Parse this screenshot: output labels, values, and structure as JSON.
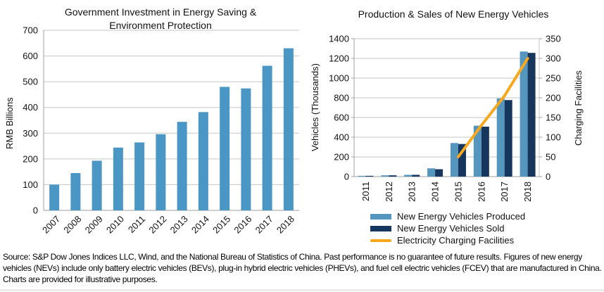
{
  "source": {
    "text": "Source: S&P Dow Jones Indices LLC, Wind, and the National Bureau of Statistics of China.  Past performance is no guarantee of future results.  Figures of new energy vehicles (NEVs) include only battery electric vehicles (BEVs), plug-in hybrid electric vehicles (PHEVs), and fuel cell electric vehicles (FCEV) that are manufactured in China.  Charts are provided for illustrative purposes."
  },
  "colors": {
    "bar_blue": "#4A97C5",
    "produced_blue": "#5596BF",
    "sold_navy": "#16365D",
    "line_orange": "#F7A81D",
    "gridline": "#C6C6C6",
    "axis": "#A0A0A0",
    "text": "#111111"
  },
  "chart_data": [
    {
      "type": "bar",
      "title": "Government Investment in Energy Saving & Environment Protection",
      "ylabel": "RMB Billions",
      "xlabel": "",
      "categories": [
        "2007",
        "2008",
        "2009",
        "2010",
        "2011",
        "2012",
        "2013",
        "2014",
        "2015",
        "2016",
        "2017",
        "2018"
      ],
      "values": [
        100,
        145,
        193,
        244,
        264,
        296,
        344,
        382,
        480,
        474,
        562,
        630
      ],
      "ylim": [
        0,
        700
      ],
      "y_ticks": [
        0,
        100,
        200,
        300,
        400,
        500,
        600,
        700
      ],
      "bar_color": "#4A97C5",
      "grid": true,
      "legend_position": "none"
    },
    {
      "type": "bar+line",
      "title": "Production & Sales of New Energy Vehicles",
      "ylabel_left": "Vehicles (Thousands)",
      "ylabel_right": "Charging Facilities",
      "categories": [
        "2011",
        "2012",
        "2013",
        "2014",
        "2015",
        "2016",
        "2017",
        "2018"
      ],
      "series": [
        {
          "name": "New Energy Vehicles Produced",
          "type": "bar",
          "axis": "left",
          "color": "#5596BF",
          "values": [
            8,
            13,
            18,
            84,
            341,
            517,
            794,
            1270
          ]
        },
        {
          "name": "New Energy Vehicles Sold",
          "type": "bar",
          "axis": "left",
          "color": "#16365D",
          "values": [
            8,
            13,
            18,
            75,
            331,
            507,
            777,
            1256
          ]
        },
        {
          "name": "Electricity Charging Facilities",
          "type": "line",
          "axis": "right",
          "color": "#F7A81D",
          "values": [
            null,
            null,
            null,
            null,
            50,
            130,
            205,
            300
          ]
        }
      ],
      "ylim_left": [
        0,
        1400
      ],
      "y_ticks_left": [
        0,
        200,
        400,
        600,
        800,
        1000,
        1200,
        1400
      ],
      "ylim_right": [
        0,
        350
      ],
      "y_ticks_right": [
        0,
        50,
        100,
        150,
        200,
        250,
        300,
        350
      ],
      "grid": true,
      "legend_position": "bottom-left"
    }
  ]
}
